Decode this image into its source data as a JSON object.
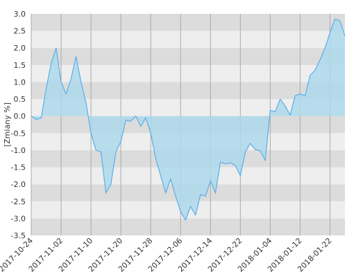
{
  "chart_data": {
    "type": "area",
    "y_label": "[Zmiany %]",
    "categories": [
      "2017-10-24",
      null,
      null,
      null,
      null,
      null,
      "2017-11-02",
      null,
      null,
      null,
      null,
      null,
      "2017-11-10",
      null,
      null,
      null,
      null,
      null,
      "2017-11-20",
      null,
      null,
      null,
      null,
      null,
      "2017-11-28",
      null,
      null,
      null,
      null,
      null,
      "2017-12-06",
      null,
      null,
      null,
      null,
      null,
      "2017-12-14",
      null,
      null,
      null,
      null,
      null,
      "2017-12-22",
      null,
      null,
      null,
      null,
      null,
      "2018-01-04",
      null,
      null,
      null,
      null,
      null,
      "2018-01-12",
      null,
      null,
      null,
      null,
      null,
      "2018-01-22",
      null,
      null,
      null
    ],
    "values": [
      0,
      -0.1,
      -0.05,
      0.8,
      1.55,
      2.0,
      1.0,
      0.65,
      1.1,
      1.75,
      1.0,
      0.4,
      -0.5,
      -1.0,
      -1.05,
      -2.25,
      -2.0,
      -1.05,
      -0.75,
      -0.12,
      -0.15,
      0.0,
      -0.3,
      -0.05,
      -0.5,
      -1.25,
      -1.75,
      -2.25,
      -1.85,
      -2.35,
      -2.8,
      -3.05,
      -2.65,
      -2.9,
      -2.3,
      -2.35,
      -1.9,
      -2.25,
      -1.35,
      -1.4,
      -1.37,
      -1.45,
      -1.75,
      -1.05,
      -0.8,
      -0.98,
      -1.02,
      -1.3,
      0.17,
      0.13,
      0.5,
      0.3,
      0.03,
      0.6,
      0.65,
      0.6,
      1.2,
      1.35,
      1.65,
      2.0,
      2.45,
      2.85,
      2.8,
      2.35
    ],
    "color": "#5aaee8",
    "fill": "#add8eb",
    "ylim": [
      -3.5,
      3.0
    ],
    "yticks": [
      {
        "value": -3.5,
        "label": "-3.5"
      },
      {
        "value": -3,
        "label": "-3.0"
      },
      {
        "value": -2.5,
        "label": "-2.5"
      },
      {
        "value": -2,
        "label": "-2.0"
      },
      {
        "value": -1.5,
        "label": "-1.5"
      },
      {
        "value": -1,
        "label": "-1.0"
      },
      {
        "value": -0.5,
        "label": "-0.5"
      },
      {
        "value": 0,
        "label": "0.0"
      },
      {
        "value": 0.5,
        "label": "0.5"
      },
      {
        "value": 1,
        "label": "1.0"
      },
      {
        "value": 1.5,
        "label": "1.5"
      },
      {
        "value": 2,
        "label": "2.0"
      },
      {
        "value": 2.5,
        "label": "2.5"
      },
      {
        "value": 3,
        "label": "3.0"
      }
    ],
    "band_colors": [
      "#dcdcdc",
      "#eeeeee"
    ]
  }
}
